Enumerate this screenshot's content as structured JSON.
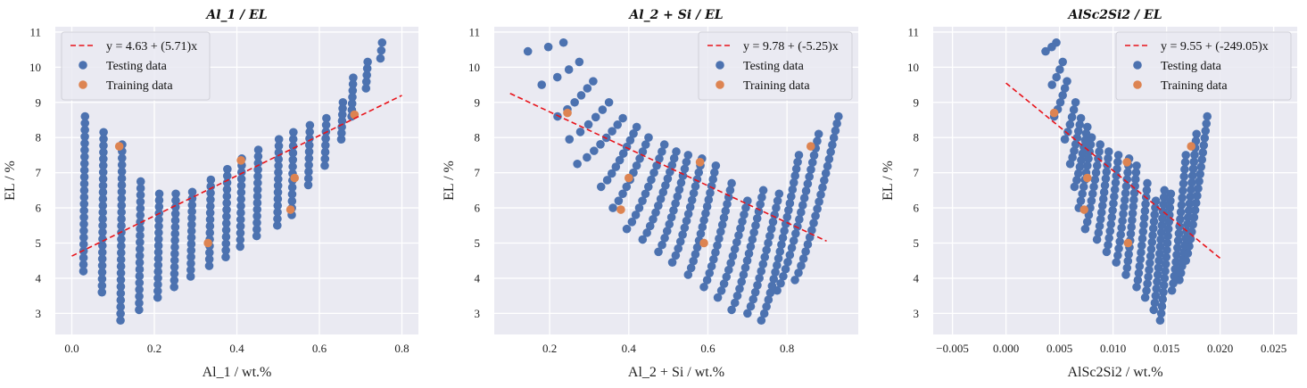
{
  "chart_data": [
    {
      "type": "scatter",
      "title": "Al_1 / EL",
      "xlabel": "Al_1 / wt.%",
      "ylabel": "EL / %",
      "xlim": [
        -0.04,
        0.84
      ],
      "ylim": [
        2.4,
        11.15
      ],
      "xticks": [
        0.0,
        0.2,
        0.4,
        0.6,
        0.8
      ],
      "xtick_labels": [
        "0.0",
        "0.2",
        "0.4",
        "0.6",
        "0.8"
      ],
      "yticks": [
        3,
        4,
        5,
        6,
        7,
        8,
        9,
        10,
        11
      ],
      "ytick_labels": [
        "3",
        "4",
        "5",
        "6",
        "7",
        "8",
        "9",
        "10",
        "11"
      ],
      "grid": true,
      "legend_position": "top-left",
      "fit_line": {
        "label": "y = 4.63 + (5.71)x",
        "intercept": 4.63,
        "slope": 5.71,
        "x_range": [
          0.0,
          0.8
        ]
      },
      "series": [
        {
          "name": "Testing data",
          "columns": [
            [
              0.03,
              4.2,
              8.6
            ],
            [
              0.075,
              3.6,
              8.15
            ],
            [
              0.12,
              2.8,
              7.8
            ],
            [
              0.165,
              3.1,
              6.75
            ],
            [
              0.21,
              3.45,
              6.4
            ],
            [
              0.25,
              3.75,
              6.4
            ],
            [
              0.29,
              4.05,
              6.45
            ],
            [
              0.335,
              4.35,
              6.8
            ],
            [
              0.375,
              4.6,
              7.1
            ],
            [
              0.41,
              4.9,
              7.4
            ],
            [
              0.45,
              5.2,
              7.65
            ],
            [
              0.5,
              5.5,
              7.95
            ],
            [
              0.535,
              5.8,
              8.15
            ],
            [
              0.575,
              6.65,
              8.35
            ],
            [
              0.615,
              7.2,
              8.55
            ],
            [
              0.655,
              7.95,
              9.0
            ],
            [
              0.68,
              8.6,
              9.7
            ],
            [
              0.715,
              9.4,
              10.15
            ],
            [
              0.75,
              10.25,
              10.7
            ]
          ]
        },
        {
          "name": "Training data",
          "points": [
            [
              0.115,
              7.75
            ],
            [
              0.33,
              5.0
            ],
            [
              0.41,
              7.35
            ],
            [
              0.53,
              5.95
            ],
            [
              0.54,
              6.85
            ],
            [
              0.685,
              8.65
            ]
          ]
        }
      ]
    },
    {
      "type": "scatter",
      "title": "Al_2 + Si / EL",
      "xlabel": "Al_2 + Si / wt.%",
      "ylabel": "EL / %",
      "xlim": [
        0.06,
        0.98
      ],
      "ylim": [
        2.4,
        11.15
      ],
      "xticks": [
        0.2,
        0.4,
        0.6,
        0.8
      ],
      "xtick_labels": [
        "0.2",
        "0.4",
        "0.6",
        "0.8"
      ],
      "yticks": [
        3,
        4,
        5,
        6,
        7,
        8,
        9,
        10,
        11
      ],
      "ytick_labels": [
        "3",
        "4",
        "5",
        "6",
        "7",
        "8",
        "9",
        "10",
        "11"
      ],
      "grid": true,
      "legend_position": "top-right",
      "fit_line": {
        "label": "y = 9.78 + (-5.25)x",
        "intercept": 9.78,
        "slope": -5.25,
        "x_range": [
          0.1,
          0.9
        ]
      },
      "series": [
        {
          "name": "Testing data",
          "arcs": [
            [
              0.145,
              10.45,
              0.235,
              10.7
            ],
            [
              0.18,
              9.5,
              0.275,
              10.15
            ],
            [
              0.22,
              8.6,
              0.31,
              9.6
            ],
            [
              0.25,
              7.95,
              0.35,
              9.0
            ],
            [
              0.27,
              7.25,
              0.385,
              8.55
            ],
            [
              0.33,
              6.6,
              0.42,
              8.3
            ],
            [
              0.36,
              6.0,
              0.45,
              8.0
            ],
            [
              0.395,
              5.4,
              0.49,
              7.8
            ],
            [
              0.435,
              5.1,
              0.52,
              7.6
            ],
            [
              0.475,
              4.75,
              0.55,
              7.5
            ],
            [
              0.51,
              4.45,
              0.585,
              7.4
            ],
            [
              0.55,
              4.1,
              0.62,
              7.2
            ],
            [
              0.59,
              3.75,
              0.66,
              6.7
            ],
            [
              0.625,
              3.45,
              0.7,
              6.2
            ],
            [
              0.66,
              3.1,
              0.74,
              6.5
            ],
            [
              0.7,
              3.0,
              0.78,
              6.4
            ],
            [
              0.735,
              2.8,
              0.83,
              7.5
            ],
            [
              0.775,
              3.65,
              0.88,
              8.1
            ],
            [
              0.82,
              3.95,
              0.93,
              8.6
            ]
          ]
        },
        {
          "name": "Training data",
          "points": [
            [
              0.245,
              8.7
            ],
            [
              0.38,
              5.95
            ],
            [
              0.4,
              6.85
            ],
            [
              0.58,
              7.3
            ],
            [
              0.59,
              5.0
            ],
            [
              0.86,
              7.75
            ]
          ]
        }
      ]
    },
    {
      "type": "scatter",
      "title": "AlSc2Si2 / EL",
      "xlabel": "AlSc2Si2 / wt.%",
      "ylabel": "EL / %",
      "xlim": [
        -0.0068,
        0.0272
      ],
      "ylim": [
        2.4,
        11.15
      ],
      "xticks": [
        -0.005,
        0.0,
        0.005,
        0.01,
        0.015,
        0.02,
        0.025
      ],
      "xtick_labels": [
        "−0.005",
        "0.000",
        "0.005",
        "0.010",
        "0.015",
        "0.020",
        "0.025"
      ],
      "yticks": [
        3,
        4,
        5,
        6,
        7,
        8,
        9,
        10,
        11
      ],
      "ytick_labels": [
        "3",
        "4",
        "5",
        "6",
        "7",
        "8",
        "9",
        "10",
        "11"
      ],
      "grid": true,
      "legend_position": "top-right",
      "fit_line": {
        "label": "y = 9.55 + (-249.05)x",
        "intercept": 9.55,
        "slope": -249.05,
        "x_range": [
          0.0,
          0.02
        ]
      },
      "series": [
        {
          "name": "Testing data",
          "arcs": [
            [
              0.0037,
              10.45,
              0.0047,
              10.7
            ],
            [
              0.0043,
              9.5,
              0.0053,
              10.15
            ],
            [
              0.0045,
              8.6,
              0.0057,
              9.6
            ],
            [
              0.0055,
              7.95,
              0.0065,
              9.0
            ],
            [
              0.006,
              7.25,
              0.007,
              8.55
            ],
            [
              0.0064,
              6.6,
              0.0076,
              8.3
            ],
            [
              0.0068,
              6.0,
              0.008,
              8.0
            ],
            [
              0.0074,
              5.4,
              0.0088,
              7.8
            ],
            [
              0.0085,
              5.1,
              0.0096,
              7.6
            ],
            [
              0.0094,
              4.75,
              0.0105,
              7.5
            ],
            [
              0.0103,
              4.45,
              0.0115,
              7.4
            ],
            [
              0.0112,
              4.1,
              0.0122,
              7.2
            ],
            [
              0.0122,
              3.75,
              0.0132,
              6.7
            ],
            [
              0.013,
              3.45,
              0.014,
              6.2
            ],
            [
              0.0138,
              3.1,
              0.0148,
              6.5
            ],
            [
              0.0144,
              2.8,
              0.0154,
              6.4
            ],
            [
              0.0155,
              3.65,
              0.0168,
              7.5
            ],
            [
              0.0162,
              3.95,
              0.0178,
              8.1
            ],
            [
              0.0168,
              4.5,
              0.0188,
              8.6
            ]
          ]
        },
        {
          "name": "Training data",
          "points": [
            [
              0.0045,
              8.7
            ],
            [
              0.0073,
              5.95
            ],
            [
              0.0076,
              6.85
            ],
            [
              0.0113,
              7.3
            ],
            [
              0.0114,
              5.0
            ],
            [
              0.0173,
              7.75
            ]
          ]
        }
      ]
    }
  ]
}
